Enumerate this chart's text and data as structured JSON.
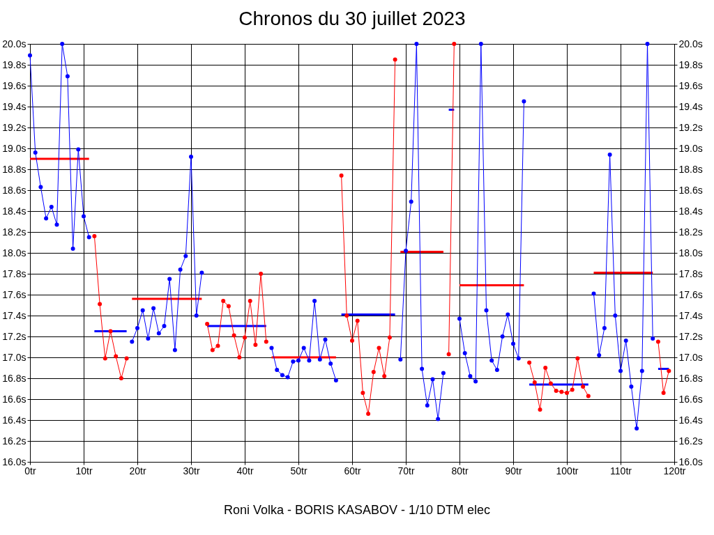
{
  "chart_data": {
    "type": "line",
    "title": "Chronos du 30 juillet 2023",
    "annotations": [
      "Roni Volka - BORIS KASABOV - 1/10 DTM elec"
    ],
    "xlim": [
      0,
      120
    ],
    "xticks": [
      {
        "value": 0,
        "label": "0tr"
      },
      {
        "value": 10,
        "label": "10tr"
      },
      {
        "value": 20,
        "label": "20tr"
      },
      {
        "value": 30,
        "label": "30tr"
      },
      {
        "value": 40,
        "label": "40tr"
      },
      {
        "value": 50,
        "label": "50tr"
      },
      {
        "value": 60,
        "label": "60tr"
      },
      {
        "value": 70,
        "label": "70tr"
      },
      {
        "value": 80,
        "label": "80tr"
      },
      {
        "value": 90,
        "label": "90tr"
      },
      {
        "value": 100,
        "label": "100tr"
      },
      {
        "value": 110,
        "label": "110tr"
      },
      {
        "value": 120,
        "label": "120tr"
      }
    ],
    "ylim": [
      16,
      20
    ],
    "yticks": [
      {
        "value": 16,
        "label": "16.0s"
      },
      {
        "value": 16.2,
        "label": "16.2s"
      },
      {
        "value": 16.4,
        "label": "16.4s"
      },
      {
        "value": 16.6,
        "label": "16.6s"
      },
      {
        "value": 16.8,
        "label": "16.8s"
      },
      {
        "value": 17,
        "label": "17.0s"
      },
      {
        "value": 17.2,
        "label": "17.2s"
      },
      {
        "value": 17.4,
        "label": "17.4s"
      },
      {
        "value": 17.6,
        "label": "17.6s"
      },
      {
        "value": 17.8,
        "label": "17.8s"
      },
      {
        "value": 18,
        "label": "18.0s"
      },
      {
        "value": 18.2,
        "label": "18.2s"
      },
      {
        "value": 18.4,
        "label": "18.4s"
      },
      {
        "value": 18.6,
        "label": "18.6s"
      },
      {
        "value": 18.8,
        "label": "18.8s"
      },
      {
        "value": 19,
        "label": "19.0s"
      },
      {
        "value": 19.2,
        "label": "19.2s"
      },
      {
        "value": 19.4,
        "label": "19.4s"
      },
      {
        "value": 19.6,
        "label": "19.6s"
      },
      {
        "value": 19.8,
        "label": "19.8s"
      },
      {
        "value": 20,
        "label": "20.0s"
      }
    ],
    "y2lim": [
      16,
      20
    ],
    "y2ticks": [
      {
        "value": 16,
        "label": "16.0s"
      },
      {
        "value": 16.2,
        "label": "16.2s"
      },
      {
        "value": 16.4,
        "label": "16.4s"
      },
      {
        "value": 16.6,
        "label": "16.6s"
      },
      {
        "value": 16.8,
        "label": "16.8s"
      },
      {
        "value": 17,
        "label": "17.0s"
      },
      {
        "value": 17.2,
        "label": "17.2s"
      },
      {
        "value": 17.4,
        "label": "17.4s"
      },
      {
        "value": 17.6,
        "label": "17.6s"
      },
      {
        "value": 17.8,
        "label": "17.8s"
      },
      {
        "value": 18,
        "label": "18.0s"
      },
      {
        "value": 18.2,
        "label": "18.2s"
      },
      {
        "value": 18.4,
        "label": "18.4s"
      },
      {
        "value": 18.6,
        "label": "18.6s"
      },
      {
        "value": 18.8,
        "label": "18.8s"
      },
      {
        "value": 19,
        "label": "19.0s"
      },
      {
        "value": 19.2,
        "label": "19.2s"
      },
      {
        "value": 19.4,
        "label": "19.4s"
      },
      {
        "value": 19.6,
        "label": "19.6s"
      },
      {
        "value": 19.8,
        "label": "19.8s"
      },
      {
        "value": 20,
        "label": "20.0s"
      }
    ],
    "grid": true,
    "series": [
      {
        "type": "line",
        "marker": "circle",
        "color": "#0000ff",
        "x": [
          0,
          1,
          2,
          3,
          4,
          5,
          6,
          7,
          8,
          9,
          10,
          11
        ],
        "values": [
          19.89,
          18.96,
          18.63,
          18.33,
          18.44,
          18.27,
          20.0,
          19.69,
          18.04,
          18.99,
          18.35,
          18.15
        ]
      },
      {
        "marker": "circle",
        "color": "#ff0000",
        "x": [
          12,
          13,
          14,
          15,
          16,
          17,
          18
        ],
        "values": [
          18.16,
          17.51,
          16.99,
          17.25,
          17.01,
          16.8,
          16.99
        ]
      },
      {
        "type": "line",
        "marker": "circle",
        "color": "#0000ff",
        "x": [
          19,
          20,
          21,
          22,
          23,
          24,
          25,
          26,
          27,
          28,
          29,
          30,
          31,
          32
        ],
        "values": [
          17.15,
          17.28,
          17.45,
          17.18,
          17.47,
          17.23,
          17.3,
          17.75,
          17.07,
          17.84,
          17.97,
          18.92,
          17.4,
          17.81
        ]
      },
      {
        "type": "line",
        "marker": "circle",
        "color": "#ff0000",
        "x": [
          33,
          34,
          35,
          36,
          37,
          38,
          39,
          40,
          41,
          42,
          43,
          44
        ],
        "values": [
          17.32,
          17.07,
          17.11,
          17.54,
          17.49,
          17.21,
          17.0,
          17.19,
          17.54,
          17.12,
          17.8,
          17.15
        ]
      },
      {
        "type": "line",
        "marker": "circle",
        "color": "#0000ff",
        "x": [
          45,
          46,
          47,
          48,
          49,
          50,
          51,
          52,
          53,
          54,
          55,
          56,
          57
        ],
        "values": [
          17.09,
          16.88,
          16.83,
          16.81,
          16.96,
          16.97,
          17.09,
          16.97,
          17.54,
          16.98,
          17.17,
          16.94,
          16.78
        ]
      },
      {
        "type": "line",
        "marker": "circle",
        "color": "#ff0000",
        "x": [
          58,
          59,
          60,
          61,
          62,
          63,
          64,
          65,
          66,
          67,
          68
        ],
        "values": [
          18.74,
          17.4,
          17.16,
          17.35,
          16.66,
          16.46,
          16.86,
          17.09,
          16.82,
          17.19,
          19.85
        ]
      },
      {
        "type": "line",
        "marker": "circle",
        "color": "#0000ff",
        "x": [
          69,
          70,
          71,
          72,
          73,
          74,
          75,
          76,
          77
        ],
        "values": [
          16.98,
          18.02,
          18.49,
          20.0,
          16.89,
          16.54,
          16.79,
          16.41,
          16.85
        ]
      },
      {
        "type": "line",
        "marker": "circle",
        "color": "#ff0000",
        "x": [
          78,
          79
        ],
        "values": [
          17.03,
          20.0
        ]
      },
      {
        "type": "line",
        "marker": "circle",
        "color": "#0000ff",
        "x": [
          80,
          81,
          82,
          83,
          84,
          85,
          86,
          87,
          88,
          89,
          90,
          91,
          92
        ],
        "values": [
          17.37,
          17.04,
          16.82,
          16.77,
          20.0,
          17.45,
          16.97,
          16.88,
          17.2,
          17.41,
          17.13,
          16.99,
          19.45
        ]
      },
      {
        "type": "line",
        "marker": "circle",
        "color": "#ff0000",
        "x": [
          93,
          94,
          95,
          96,
          97,
          98,
          99,
          100,
          101,
          102,
          103,
          104
        ],
        "values": [
          16.95,
          16.76,
          16.5,
          16.9,
          16.75,
          16.68,
          16.67,
          16.66,
          16.69,
          16.99,
          16.72,
          16.63
        ]
      },
      {
        "type": "line",
        "marker": "circle",
        "color": "#0000ff",
        "x": [
          105,
          106,
          107,
          108,
          109,
          110,
          111,
          112,
          113,
          114,
          115,
          116
        ],
        "values": [
          17.61,
          17.02,
          17.28,
          18.94,
          17.4,
          16.87,
          17.16,
          16.72,
          16.32,
          16.87,
          20.0,
          17.18
        ]
      },
      {
        "type": "line",
        "marker": "circle",
        "color": "#ff0000",
        "x": [
          117,
          118,
          119
        ],
        "values": [
          17.15,
          16.66,
          16.87
        ]
      },
      {
        "type": "line",
        "marker": "none",
        "color": "#ff0000",
        "x": [
          0,
          11
        ],
        "values": [
          18.9,
          18.9
        ]
      },
      {
        "type": "line",
        "marker": "none",
        "color": "#0000ff",
        "x": [
          12,
          18
        ],
        "values": [
          17.25,
          17.25
        ]
      },
      {
        "type": "line",
        "marker": "none",
        "color": "#ff0000",
        "x": [
          19,
          32
        ],
        "values": [
          17.56,
          17.56
        ]
      },
      {
        "type": "line",
        "marker": "none",
        "color": "#0000ff",
        "x": [
          33,
          44
        ],
        "values": [
          17.3,
          17.3
        ]
      },
      {
        "type": "line",
        "marker": "none",
        "color": "#ff0000",
        "x": [
          45,
          57
        ],
        "values": [
          17.0,
          17.0
        ]
      },
      {
        "type": "line",
        "marker": "none",
        "color": "#0000ff",
        "x": [
          58,
          68
        ],
        "values": [
          17.41,
          17.41
        ]
      },
      {
        "type": "line",
        "marker": "none",
        "color": "#ff0000",
        "x": [
          69,
          77
        ],
        "values": [
          18.01,
          18.01
        ]
      },
      {
        "type": "line",
        "marker": "none",
        "color": "#0000ff",
        "x": [
          78,
          79
        ],
        "values": [
          19.37,
          19.37
        ]
      },
      {
        "type": "line",
        "marker": "none",
        "color": "#ff0000",
        "x": [
          80,
          92
        ],
        "values": [
          17.69,
          17.69
        ]
      },
      {
        "type": "line",
        "marker": "none",
        "color": "#0000ff",
        "x": [
          93,
          104
        ],
        "values": [
          16.74,
          16.74
        ]
      },
      {
        "type": "line",
        "marker": "none",
        "color": "#ff0000",
        "x": [
          105,
          116
        ],
        "values": [
          17.81,
          17.81
        ]
      },
      {
        "type": "line",
        "marker": "none",
        "color": "#0000ff",
        "x": [
          117,
          119
        ],
        "values": [
          16.89,
          16.89
        ]
      }
    ]
  }
}
